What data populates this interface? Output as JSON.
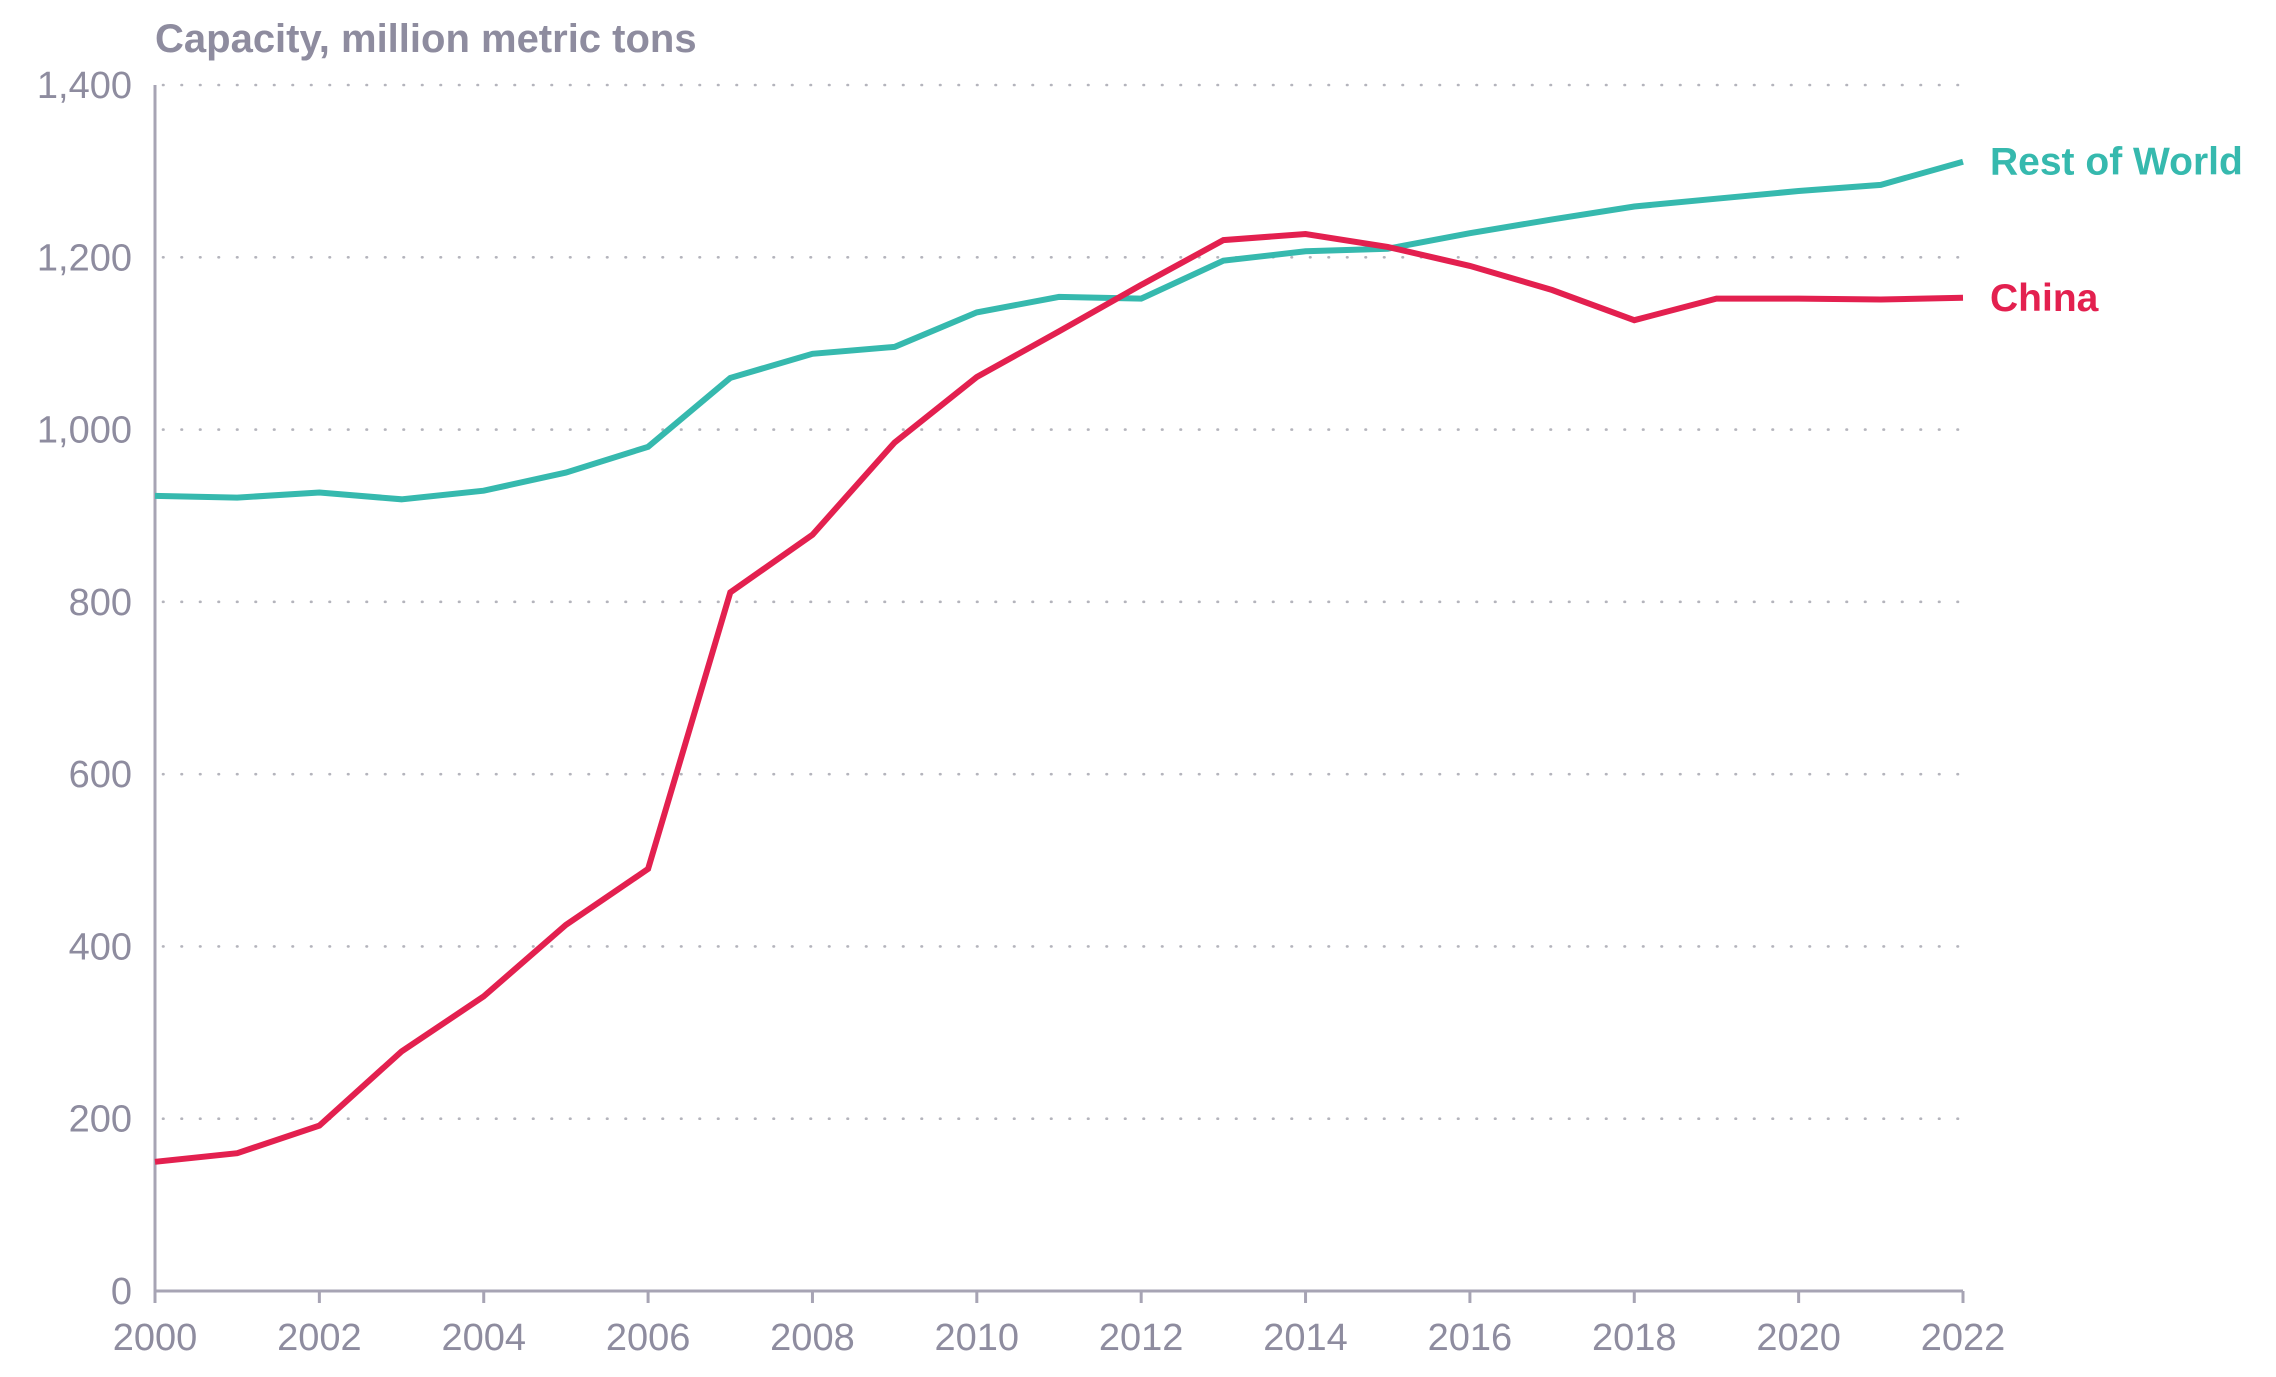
{
  "chart_data": {
    "type": "line",
    "ylabel": "Capacity, million metric tons",
    "ylim": [
      0,
      1400
    ],
    "xlim": [
      2000,
      2022
    ],
    "grid": true,
    "y_ticks": [
      "0",
      "200",
      "400",
      "600",
      "800",
      "1,000",
      "1,200",
      "1,400"
    ],
    "y_tick_values": [
      0,
      200,
      400,
      600,
      800,
      1000,
      1200,
      1400
    ],
    "x_ticks": [
      "2000",
      "2002",
      "2004",
      "2006",
      "2008",
      "2010",
      "2012",
      "2014",
      "2016",
      "2018",
      "2020",
      "2022"
    ],
    "x_tick_values": [
      2000,
      2002,
      2004,
      2006,
      2008,
      2010,
      2012,
      2014,
      2016,
      2018,
      2020,
      2022
    ],
    "x": [
      2000,
      2001,
      2002,
      2003,
      2004,
      2005,
      2006,
      2007,
      2008,
      2009,
      2010,
      2011,
      2012,
      2013,
      2014,
      2015,
      2016,
      2017,
      2018,
      2019,
      2020,
      2021,
      2022
    ],
    "series": [
      {
        "name": "Rest of World",
        "color": "#36b9ae",
        "values": [
          923,
          921,
          927,
          919,
          929,
          950,
          980,
          1060,
          1088,
          1096,
          1136,
          1154,
          1152,
          1196,
          1207,
          1210,
          1228,
          1244,
          1259,
          1268,
          1277,
          1284,
          1311
        ]
      },
      {
        "name": "China",
        "color": "#e3204f",
        "values": [
          150,
          160,
          192,
          278,
          342,
          425,
          490,
          811,
          878,
          985,
          1061,
          1114,
          1168,
          1220,
          1227,
          1212,
          1190,
          1162,
          1127,
          1152,
          1152,
          1151,
          1153
        ]
      }
    ]
  }
}
